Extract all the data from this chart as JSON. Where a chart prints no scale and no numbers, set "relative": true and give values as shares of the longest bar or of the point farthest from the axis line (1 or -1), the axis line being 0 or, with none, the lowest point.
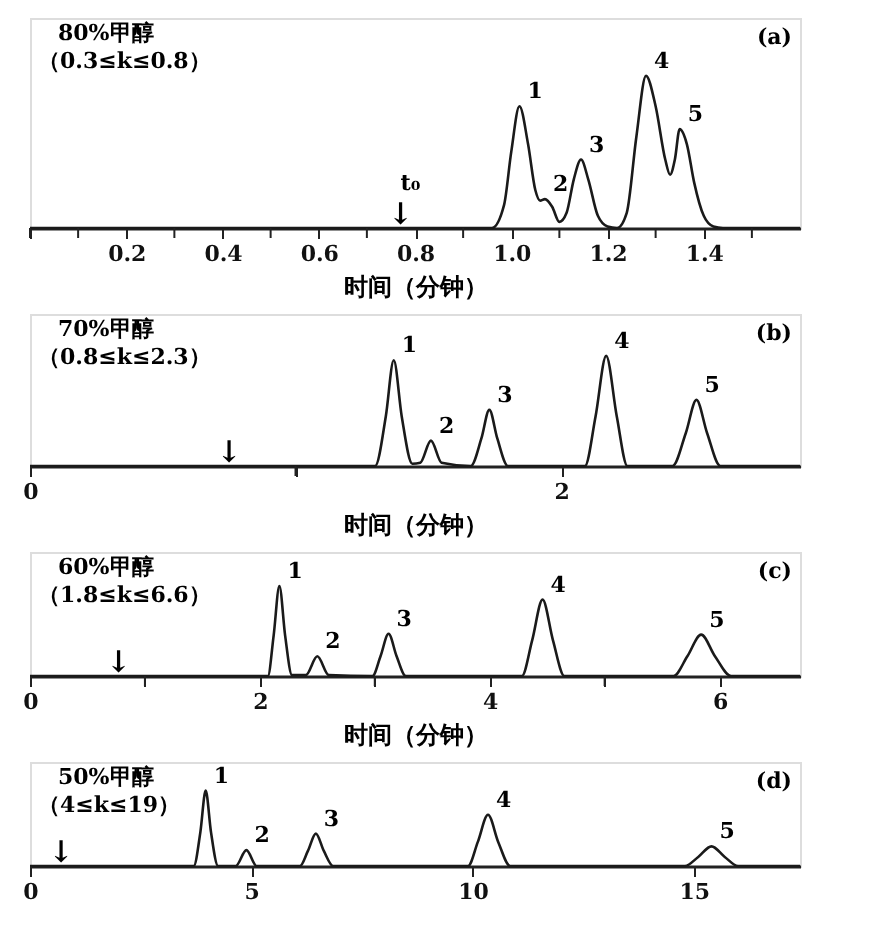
{
  "chart_data": [
    {
      "type": "line",
      "relative": true,
      "title": "80%甲醇",
      "subtitle": "（0.3≤k≤0.8）",
      "xlabel": "时间（分钟）",
      "xlim": [
        0,
        1.6
      ],
      "xticks": [
        {
          "value": 0,
          "label": null
        },
        {
          "value": 0.1,
          "label": null
        },
        0.2,
        {
          "value": 0.3,
          "label": null
        },
        0.4,
        {
          "value": 0.5,
          "label": null
        },
        0.6,
        {
          "value": 0.7,
          "label": null
        },
        0.8,
        {
          "value": 0.9,
          "label": null
        },
        {
          "value": 1.0,
          "label": "1.0"
        },
        {
          "value": 1.1,
          "label": null
        },
        1.2,
        {
          "value": 1.3,
          "label": null
        },
        1.4,
        {
          "value": 1.5,
          "label": null
        }
      ],
      "line_style": "solid",
      "series": [
        {
          "color": "#1a1a1a",
          "x": [
            0,
            0.96,
            0.985,
            1.0,
            1.017,
            1.035,
            1.05,
            1.06,
            1.07,
            1.085,
            1.1,
            1.115,
            1.13,
            1.145,
            1.16,
            1.18,
            1.2,
            1.22,
            1.24,
            1.26,
            1.28,
            1.3,
            1.32,
            1.33,
            1.34,
            1.35,
            1.365,
            1.38,
            1.4,
            1.42,
            1.44,
            1.6
          ],
          "values": [
            0,
            0,
            0.15,
            0.5,
            0.8,
            0.55,
            0.25,
            0.18,
            0.19,
            0.14,
            0.04,
            0.1,
            0.32,
            0.45,
            0.32,
            0.08,
            0.01,
            0,
            0.1,
            0.6,
            1.0,
            0.8,
            0.45,
            0.35,
            0.45,
            0.65,
            0.55,
            0.3,
            0.08,
            0.01,
            0,
            0
          ]
        }
      ],
      "annotations": [
        "(a)",
        {
          "text": "1",
          "x": 1.017,
          "y": 0.8
        },
        {
          "text": "2",
          "x": 1.07,
          "y": 0.19
        },
        {
          "text": "3",
          "x": 1.145,
          "y": 0.45
        },
        {
          "text": "4",
          "x": 1.28,
          "y": 1.0
        },
        {
          "text": "5",
          "x": 1.35,
          "y": 0.65
        },
        {
          "text": "↓",
          "x": 0.77,
          "y": 0
        },
        {
          "text": "t₀",
          "x": 0.77,
          "y": 0
        }
      ]
    },
    {
      "type": "line",
      "relative": true,
      "title": "70%甲醇",
      "subtitle": "（0.8≤k≤2.3）",
      "xlabel": "时间（分钟）",
      "xlim": [
        0,
        2.9
      ],
      "xticks": [
        0,
        {
          "value": 1,
          "label": null
        },
        2
      ],
      "line_style": "solid",
      "series": [
        {
          "color": "#1a1a1a",
          "x": [
            0,
            1.3,
            1.34,
            1.37,
            1.4,
            1.44,
            1.47,
            1.51,
            1.55,
            1.66,
            1.7,
            1.73,
            1.76,
            1.8,
            2.09,
            2.13,
            2.17,
            2.21,
            2.25,
            2.42,
            2.47,
            2.51,
            2.55,
            2.6,
            2.9
          ],
          "values": [
            0,
            0,
            0.45,
            0.96,
            0.45,
            0.02,
            0.03,
            0.23,
            0.03,
            0,
            0.25,
            0.51,
            0.25,
            0,
            0,
            0.45,
            1.0,
            0.45,
            0,
            0,
            0.3,
            0.6,
            0.3,
            0,
            0
          ]
        }
      ],
      "annotations": [
        "(b)",
        {
          "text": "1",
          "x": 1.37,
          "y": 0.96
        },
        {
          "text": "2",
          "x": 1.51,
          "y": 0.23
        },
        {
          "text": "3",
          "x": 1.73,
          "y": 0.51
        },
        {
          "text": "4",
          "x": 2.17,
          "y": 1.0
        },
        {
          "text": "5",
          "x": 2.51,
          "y": 0.6
        },
        {
          "text": "↓",
          "x": 0.75,
          "y": 0
        }
      ]
    },
    {
      "type": "line",
      "relative": true,
      "title": "60%甲醇",
      "subtitle": "（1.8≤k≤6.6）",
      "xlabel": "时间（分钟）",
      "xlim": [
        0,
        6.7
      ],
      "xticks": [
        0,
        {
          "value": 1,
          "label": null
        },
        2,
        {
          "value": 3,
          "label": null
        },
        4,
        {
          "value": 5,
          "label": null
        },
        6
      ],
      "line_style": "solid",
      "series": [
        {
          "color": "#1a1a1a",
          "x": [
            0,
            2.07,
            2.12,
            2.17,
            2.22,
            2.28,
            2.4,
            2.5,
            2.6,
            2.98,
            3.05,
            3.12,
            3.19,
            3.27,
            4.28,
            4.37,
            4.46,
            4.55,
            4.65,
            5.6,
            5.72,
            5.84,
            5.96,
            6.1,
            6.7
          ],
          "values": [
            0,
            0,
            0.45,
            1.0,
            0.45,
            0.01,
            0.01,
            0.22,
            0.01,
            0,
            0.22,
            0.47,
            0.22,
            0,
            0,
            0.4,
            0.85,
            0.4,
            0,
            0,
            0.22,
            0.46,
            0.22,
            0,
            0
          ]
        }
      ],
      "annotations": [
        "(c)",
        {
          "text": "1",
          "x": 2.17,
          "y": 1.0
        },
        {
          "text": "2",
          "x": 2.5,
          "y": 0.22
        },
        {
          "text": "3",
          "x": 3.12,
          "y": 0.47
        },
        {
          "text": "4",
          "x": 4.46,
          "y": 0.85
        },
        {
          "text": "5",
          "x": 5.84,
          "y": 0.46
        },
        {
          "text": "↓",
          "x": 0.77,
          "y": 0
        }
      ]
    },
    {
      "type": "line",
      "relative": true,
      "title": "50%甲醇",
      "subtitle": "（4≤k≤19）",
      "xlim": [
        0,
        17.4
      ],
      "xticks": [
        0,
        5,
        10,
        15
      ],
      "line_style": "solid",
      "series": [
        {
          "color": "#1a1a1a",
          "x": [
            0,
            3.7,
            3.85,
            3.97,
            4.09,
            4.25,
            4.65,
            4.89,
            5.12,
            6.1,
            6.28,
            6.46,
            6.64,
            6.85,
            9.9,
            10.12,
            10.35,
            10.58,
            10.85,
            14.8,
            15.1,
            15.4,
            15.7,
            16.0,
            17.4
          ],
          "values": [
            0,
            0,
            0.45,
            1.0,
            0.45,
            0,
            0,
            0.21,
            0,
            0,
            0.2,
            0.43,
            0.2,
            0,
            0,
            0.32,
            0.68,
            0.32,
            0,
            0,
            0.12,
            0.26,
            0.12,
            0,
            0
          ]
        }
      ],
      "annotations": [
        "(d)",
        {
          "text": "1",
          "x": 3.97,
          "y": 1.0
        },
        {
          "text": "2",
          "x": 4.89,
          "y": 0.21
        },
        {
          "text": "3",
          "x": 6.46,
          "y": 0.43
        },
        {
          "text": "4",
          "x": 10.35,
          "y": 0.68
        },
        {
          "text": "5",
          "x": 15.4,
          "y": 0.26
        },
        {
          "text": "↓",
          "x": 0.7,
          "y": 0
        }
      ]
    }
  ]
}
